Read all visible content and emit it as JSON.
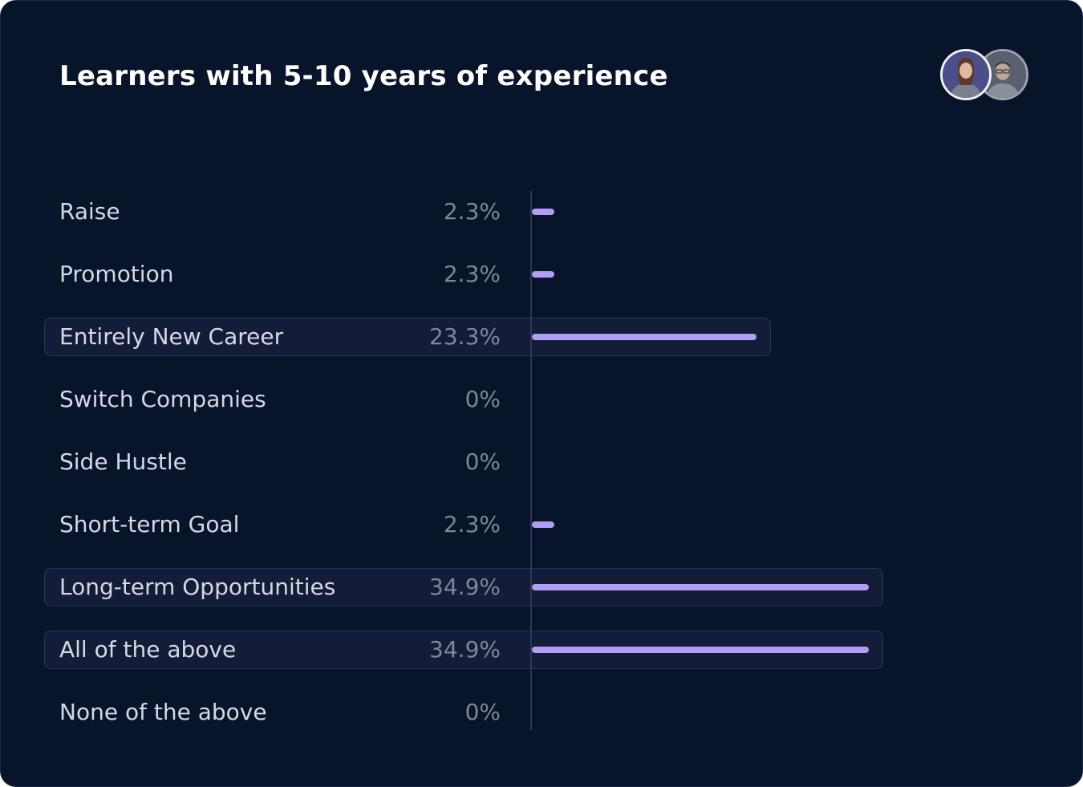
{
  "card": {
    "title": "Learners with 5-10 years of experience",
    "avatars": [
      "avatar-woman",
      "avatar-man"
    ]
  },
  "colors": {
    "background": "#07142a",
    "bar": "#b19cf6",
    "highlight_row": "#141d38",
    "label": "#d4d9e3",
    "percent": "#7e8698"
  },
  "chart_data": {
    "type": "bar",
    "orientation": "horizontal",
    "title": "Learners with 5-10 years of experience",
    "xlim": [
      0,
      34.9
    ],
    "unit": "%",
    "categories": [
      "Raise",
      "Promotion",
      "Entirely New Career",
      "Switch Companies",
      "Side Hustle",
      "Short-term Goal",
      "Long-term Opportunities",
      "All of the above",
      "None of the above"
    ],
    "values": [
      2.3,
      2.3,
      23.3,
      0,
      0,
      2.3,
      34.9,
      34.9,
      0
    ],
    "value_labels": [
      "2.3%",
      "2.3%",
      "23.3%",
      "0%",
      "0%",
      "2.3%",
      "34.9%",
      "34.9%",
      "0%"
    ],
    "highlighted": [
      false,
      false,
      true,
      false,
      false,
      false,
      true,
      true,
      false
    ]
  }
}
